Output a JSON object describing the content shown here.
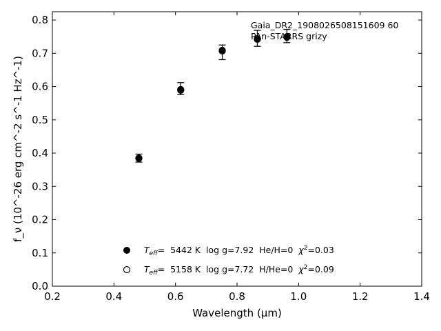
{
  "chart_data": {
    "type": "scatter",
    "title": "",
    "xlabel": "Wavelength (μm)",
    "ylabel": "f_ν (10^-26 erg cm^-2 s^-1 Hz^-1)",
    "xlim": [
      0.2,
      1.4
    ],
    "ylim": [
      0.0,
      0.825
    ],
    "xticks": [
      "0.2",
      "0.4",
      "0.6",
      "0.8",
      "1.0",
      "1.2",
      "1.4"
    ],
    "yticks": [
      "0.0",
      "0.1",
      "0.2",
      "0.3",
      "0.4",
      "0.5",
      "0.6",
      "0.7",
      "0.8"
    ],
    "grid": false,
    "annotation": {
      "line1": "Gaia_DR2_1908026508151609 60",
      "line2": "PAn-STARRS grizy"
    },
    "observed": {
      "x": [
        0.481,
        0.617,
        0.752,
        0.866,
        0.962
      ],
      "y": [
        0.385,
        0.594,
        0.703,
        0.745,
        0.752
      ],
      "err": [
        0.012,
        0.018,
        0.022,
        0.024,
        0.02
      ]
    },
    "series": [
      {
        "name": "T_eff= 5442 K log g=7.92 He/H=0 χ²=0.03",
        "marker": "filled",
        "x": [
          0.481,
          0.617,
          0.752,
          0.866,
          0.962
        ],
        "y": [
          0.385,
          0.591,
          0.709,
          0.742,
          0.748
        ]
      },
      {
        "name": "T_eff= 5158 K log g=7.72 H/He=0 χ²=0.09",
        "marker": "open",
        "x": [
          0.481,
          0.617,
          0.752,
          0.866,
          0.962
        ],
        "y": [
          0.384,
          0.589,
          0.707,
          0.744,
          0.75
        ]
      }
    ],
    "legend": {
      "position": "lower-center",
      "entries": [
        {
          "teff_label": "T",
          "teff_sub": "eff",
          "text": "=  5442 K  log g=7.92  He/H=0  ",
          "chi_label": "χ",
          "chi_sup": "2",
          "chi_val": "=0.03"
        },
        {
          "teff_label": "T",
          "teff_sub": "eff",
          "text": "=  5158 K  log g=7.72  H/He=0  ",
          "chi_label": "χ",
          "chi_sup": "2",
          "chi_val": "=0.09"
        }
      ]
    }
  }
}
